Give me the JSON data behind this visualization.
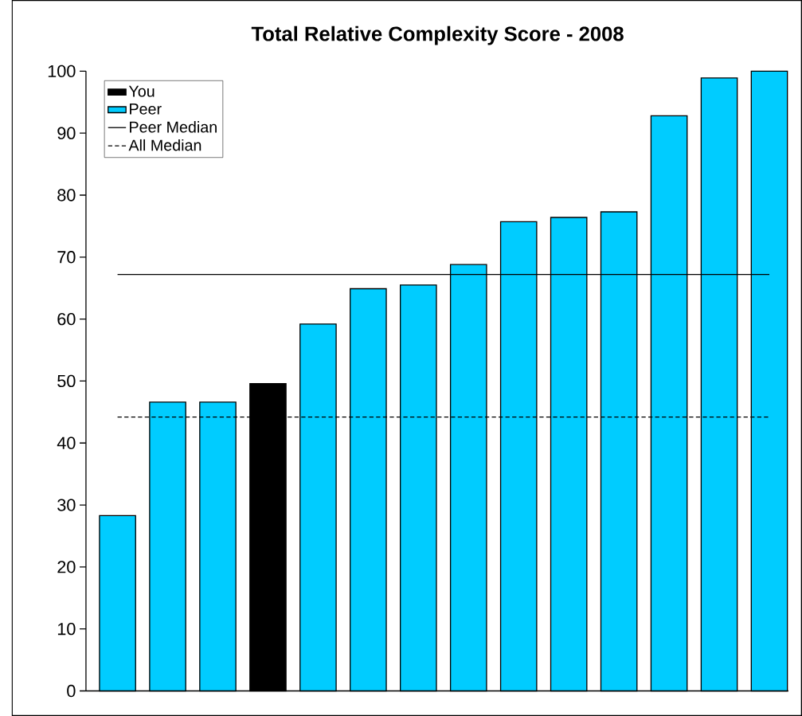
{
  "chart_data": {
    "type": "bar",
    "title": "Total Relative Complexity Score - 2008",
    "categories": [
      null,
      null,
      null,
      null,
      null,
      null,
      null,
      null,
      null,
      null,
      null,
      null,
      null,
      null
    ],
    "series": [
      {
        "name": "You",
        "color": "#000000",
        "values": [
          null,
          null,
          null,
          49.6,
          null,
          null,
          null,
          null,
          null,
          null,
          null,
          null,
          null,
          null
        ]
      },
      {
        "name": "Peer",
        "color": "#00ccff",
        "values": [
          28.3,
          46.6,
          46.6,
          null,
          59.2,
          64.9,
          65.5,
          68.8,
          75.7,
          76.4,
          77.3,
          92.8,
          98.9,
          100
        ]
      }
    ],
    "ref_lines": [
      {
        "axis": "y",
        "value": 67.2,
        "label": "Peer Median",
        "line_style": "solid",
        "color": "#000000"
      },
      {
        "axis": "y",
        "value": 44.2,
        "label": "All Median",
        "line_style": "dashed",
        "color": "#000000"
      }
    ],
    "ylim": [
      0,
      100
    ],
    "yticks": [
      0,
      10,
      20,
      30,
      40,
      50,
      60,
      70,
      80,
      90,
      100
    ],
    "grid": false,
    "legend": "top left"
  }
}
